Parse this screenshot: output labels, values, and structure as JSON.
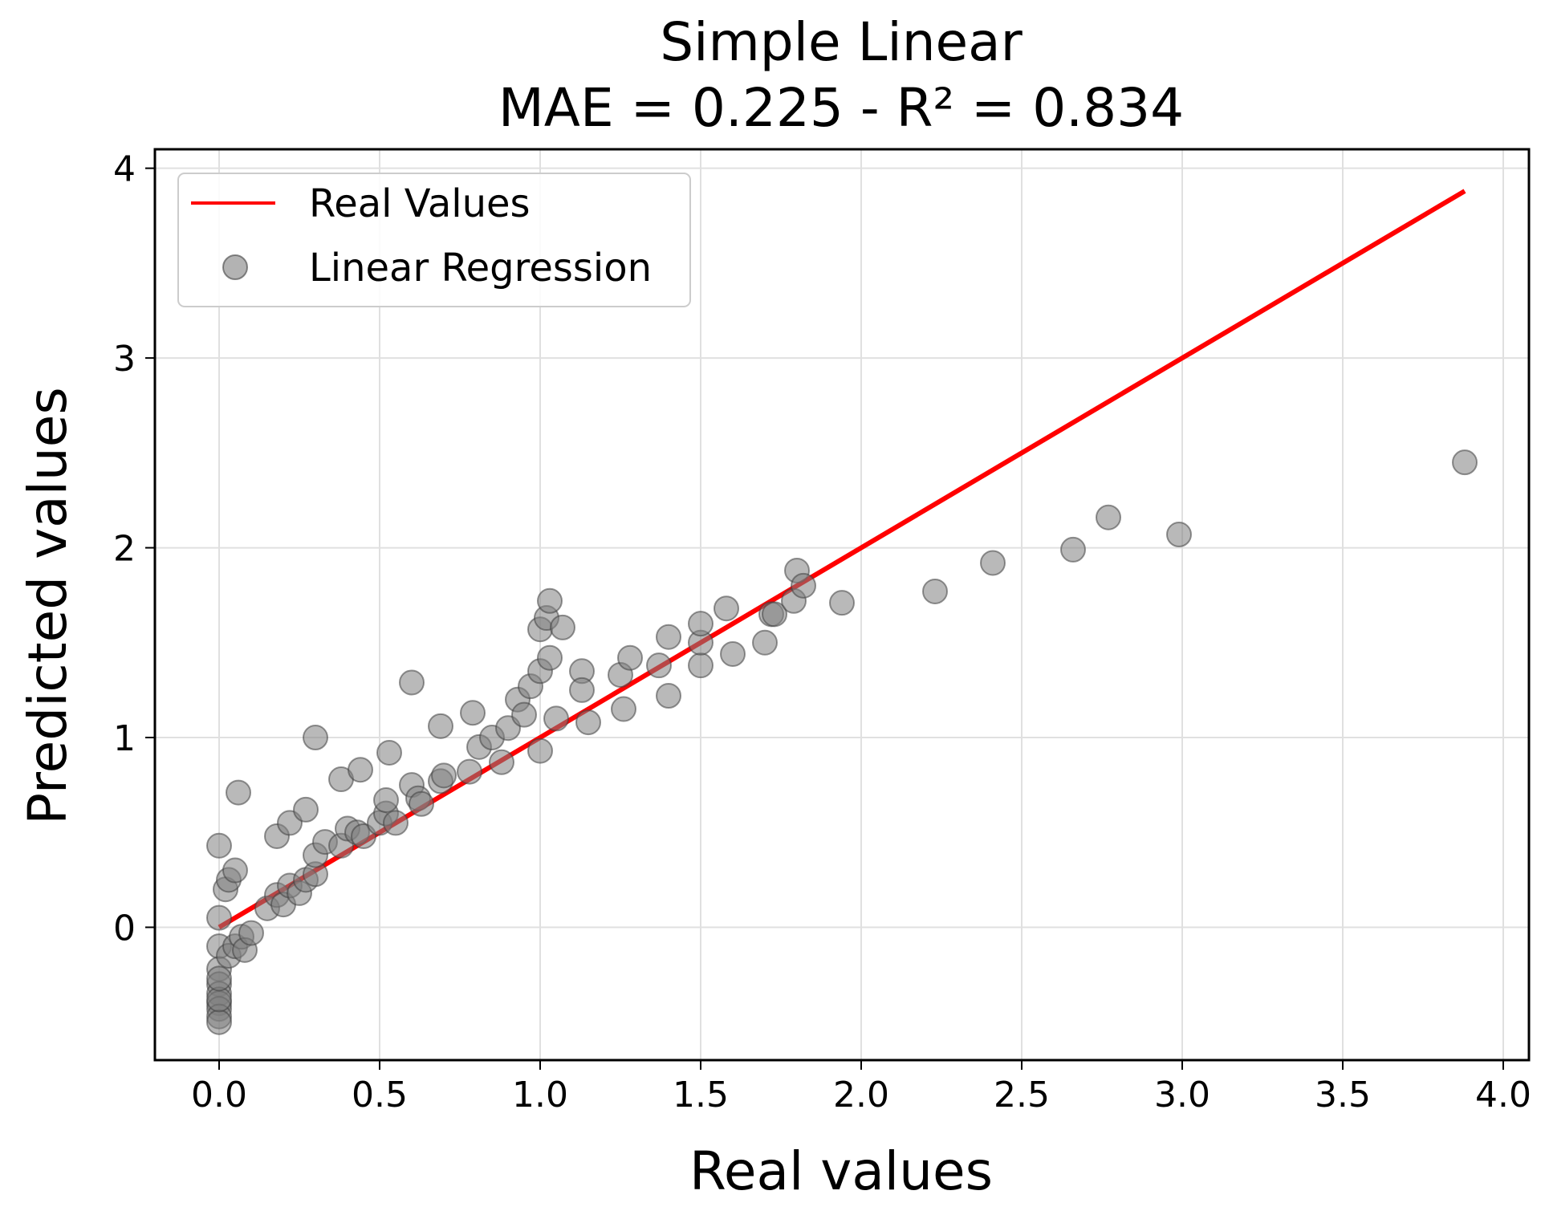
{
  "chart_data": {
    "type": "scatter",
    "title_line1": "Simple Linear",
    "title_line2": "MAE = 0.225 - R² = 0.834",
    "xlabel": "Real values",
    "ylabel": "Predicted values",
    "xlim": [
      -0.2,
      4.08
    ],
    "ylim": [
      -0.7,
      4.1
    ],
    "grid": true,
    "legend_position": "top-left",
    "xticks": [
      0.0,
      0.5,
      1.0,
      1.5,
      2.0,
      2.5,
      3.0,
      3.5,
      4.0
    ],
    "xtick_labels": [
      "0.0",
      "0.5",
      "1.0",
      "1.5",
      "2.0",
      "2.5",
      "3.0",
      "3.5",
      "4.0"
    ],
    "yticks": [
      0,
      1,
      2,
      3,
      4
    ],
    "ytick_labels": [
      "0",
      "1",
      "2",
      "3",
      "4"
    ],
    "colors": {
      "line": "#ff0000",
      "points": "#808080",
      "point_edge": "#404040"
    },
    "series": [
      {
        "name": "Real Values",
        "kind": "line",
        "x": [
          0.0,
          3.88
        ],
        "y": [
          0.0,
          3.88
        ]
      },
      {
        "name": "Linear Regression",
        "kind": "scatter",
        "points": [
          [
            0.0,
            0.43
          ],
          [
            0.0,
            0.05
          ],
          [
            0.0,
            -0.1
          ],
          [
            0.0,
            -0.22
          ],
          [
            0.0,
            -0.3
          ],
          [
            0.0,
            -0.35
          ],
          [
            0.0,
            -0.4
          ],
          [
            0.0,
            -0.43
          ],
          [
            0.0,
            -0.47
          ],
          [
            0.0,
            -0.5
          ],
          [
            0.0,
            -0.38
          ],
          [
            0.0,
            -0.27
          ],
          [
            0.02,
            0.2
          ],
          [
            0.03,
            0.25
          ],
          [
            0.05,
            0.3
          ],
          [
            0.03,
            -0.15
          ],
          [
            0.05,
            -0.1
          ],
          [
            0.07,
            -0.05
          ],
          [
            0.08,
            -0.12
          ],
          [
            0.1,
            -0.03
          ],
          [
            0.06,
            0.71
          ],
          [
            0.15,
            0.1
          ],
          [
            0.18,
            0.17
          ],
          [
            0.2,
            0.12
          ],
          [
            0.22,
            0.22
          ],
          [
            0.25,
            0.18
          ],
          [
            0.27,
            0.25
          ],
          [
            0.3,
            0.28
          ],
          [
            0.3,
            0.38
          ],
          [
            0.33,
            0.45
          ],
          [
            0.38,
            0.43
          ],
          [
            0.4,
            0.52
          ],
          [
            0.43,
            0.5
          ],
          [
            0.45,
            0.48
          ],
          [
            0.18,
            0.48
          ],
          [
            0.22,
            0.55
          ],
          [
            0.27,
            0.62
          ],
          [
            0.3,
            1.0
          ],
          [
            0.38,
            0.78
          ],
          [
            0.44,
            0.83
          ],
          [
            0.5,
            0.55
          ],
          [
            0.52,
            0.6
          ],
          [
            0.52,
            0.67
          ],
          [
            0.55,
            0.55
          ],
          [
            0.53,
            0.92
          ],
          [
            0.6,
            0.75
          ],
          [
            0.62,
            0.68
          ],
          [
            0.63,
            0.65
          ],
          [
            0.6,
            1.29
          ],
          [
            0.69,
            0.77
          ],
          [
            0.7,
            0.8
          ],
          [
            0.69,
            1.06
          ],
          [
            0.78,
            0.82
          ],
          [
            0.79,
            1.13
          ],
          [
            0.81,
            0.95
          ],
          [
            0.85,
            1.0
          ],
          [
            0.88,
            0.87
          ],
          [
            0.9,
            1.05
          ],
          [
            0.93,
            1.2
          ],
          [
            0.95,
            1.12
          ],
          [
            0.97,
            1.27
          ],
          [
            1.0,
            1.35
          ],
          [
            1.0,
            0.93
          ],
          [
            1.0,
            1.57
          ],
          [
            1.02,
            1.63
          ],
          [
            1.03,
            1.72
          ],
          [
            1.03,
            1.42
          ],
          [
            1.05,
            1.1
          ],
          [
            1.07,
            1.58
          ],
          [
            1.13,
            1.35
          ],
          [
            1.13,
            1.25
          ],
          [
            1.15,
            1.08
          ],
          [
            1.25,
            1.33
          ],
          [
            1.26,
            1.15
          ],
          [
            1.28,
            1.42
          ],
          [
            1.37,
            1.38
          ],
          [
            1.4,
            1.22
          ],
          [
            1.4,
            1.53
          ],
          [
            1.5,
            1.38
          ],
          [
            1.5,
            1.5
          ],
          [
            1.5,
            1.6
          ],
          [
            1.58,
            1.68
          ],
          [
            1.6,
            1.44
          ],
          [
            1.7,
            1.5
          ],
          [
            1.72,
            1.65
          ],
          [
            1.73,
            1.65
          ],
          [
            1.79,
            1.72
          ],
          [
            1.8,
            1.88
          ],
          [
            1.82,
            1.8
          ],
          [
            1.94,
            1.71
          ],
          [
            2.23,
            1.77
          ],
          [
            2.41,
            1.92
          ],
          [
            2.66,
            1.99
          ],
          [
            2.77,
            2.16
          ],
          [
            2.99,
            2.07
          ],
          [
            3.88,
            2.45
          ]
        ]
      }
    ]
  }
}
